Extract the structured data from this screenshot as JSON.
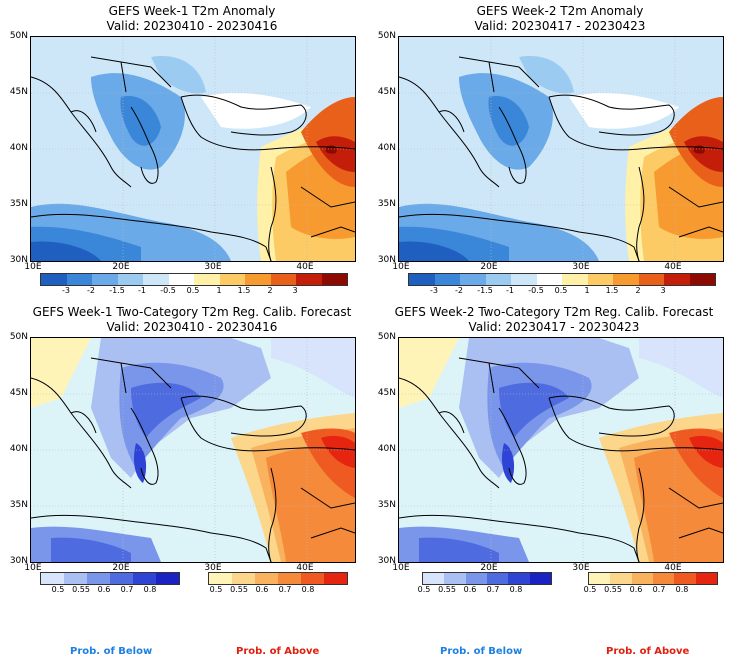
{
  "panels": [
    {
      "title": "GEFS Week-1 T2m Anomaly",
      "valid": "Valid: 20230410 - 20230416"
    },
    {
      "title": "GEFS Week-2 T2m Anomaly",
      "valid": "Valid: 20230417 - 20230423"
    },
    {
      "title": "GEFS Week-1 Two-Category T2m Reg. Calib. Forecast",
      "valid": "Valid: 20230410 - 20230416"
    },
    {
      "title": "GEFS Week-2 Two-Category T2m Reg. Calib. Forecast",
      "valid": "Valid: 20230417 - 20230423"
    }
  ],
  "lat_labels": [
    "50N",
    "45N",
    "40N",
    "35N",
    "30N"
  ],
  "lon_labels": [
    "10E",
    "20E",
    "30E",
    "40E"
  ],
  "anomaly_colorbar": {
    "ticks": [
      "-3",
      "-2",
      "-1.5",
      "-1",
      "-0.5",
      "0.5",
      "1",
      "1.5",
      "2",
      "3"
    ],
    "colors": [
      "#1f5fbf",
      "#3a86d9",
      "#6aaae8",
      "#9ccbf2",
      "#cde6f8",
      "#ffffff",
      "#fff2a8",
      "#fdcb66",
      "#f79b30",
      "#e8601a",
      "#c41e0a",
      "#8c0a00"
    ]
  },
  "prob_below_colorbar": {
    "ticks": [
      "0.5",
      "0.55",
      "0.6",
      "0.7",
      "0.8"
    ],
    "colors": [
      "#d8e4fb",
      "#aabff2",
      "#7a96ea",
      "#4f6be0",
      "#2f44d4",
      "#1a22c4"
    ]
  },
  "prob_above_colorbar": {
    "ticks": [
      "0.5",
      "0.55",
      "0.6",
      "0.7",
      "0.8"
    ],
    "colors": [
      "#fff4b8",
      "#fcd68a",
      "#f9b35e",
      "#f58a3a",
      "#ef5a22",
      "#e5250f"
    ]
  },
  "footer": {
    "below": "Prob. of Below",
    "above": "Prob. of Above",
    "below_color": "#1e7fe0",
    "above_color": "#e0200e"
  }
}
